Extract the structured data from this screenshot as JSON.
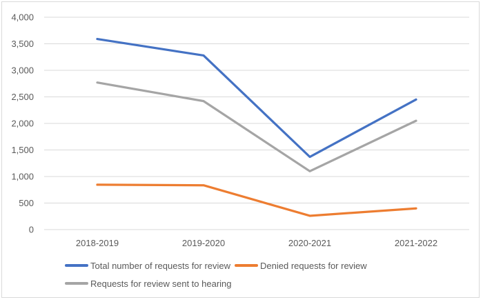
{
  "chart_data": {
    "type": "line",
    "categories": [
      "2018-2019",
      "2019-2020",
      "2020-2021",
      "2021-2022"
    ],
    "series": [
      {
        "name": "Total number of requests for review",
        "color": "#4472C4",
        "values": [
          3590,
          3280,
          1370,
          2450
        ]
      },
      {
        "name": "Denied requests for review",
        "color": "#ED7D31",
        "values": [
          845,
          835,
          260,
          400
        ]
      },
      {
        "name": "Requests for review sent to hearing",
        "color": "#A5A5A5",
        "values": [
          2770,
          2420,
          1100,
          2050
        ]
      }
    ],
    "ylim": [
      0,
      4000
    ],
    "ytick_step": 500,
    "yticks": [
      {
        "value": 0,
        "label": "0"
      },
      {
        "value": 500,
        "label": "500"
      },
      {
        "value": 1000,
        "label": "1,000"
      },
      {
        "value": 1500,
        "label": "1,500"
      },
      {
        "value": 2000,
        "label": "2,000"
      },
      {
        "value": 2500,
        "label": "2,500"
      },
      {
        "value": 3000,
        "label": "3,000"
      },
      {
        "value": 3500,
        "label": "3,500"
      },
      {
        "value": 4000,
        "label": "4,000"
      }
    ],
    "grid": true,
    "legend_position": "bottom",
    "legend_rows": [
      [
        0,
        1
      ],
      [
        2
      ]
    ]
  },
  "style": {
    "grid_color": "#D9D9D9",
    "text_color": "#595959",
    "border_color": "#D9D9D9",
    "background": "#ffffff",
    "line_width": 3.25
  }
}
